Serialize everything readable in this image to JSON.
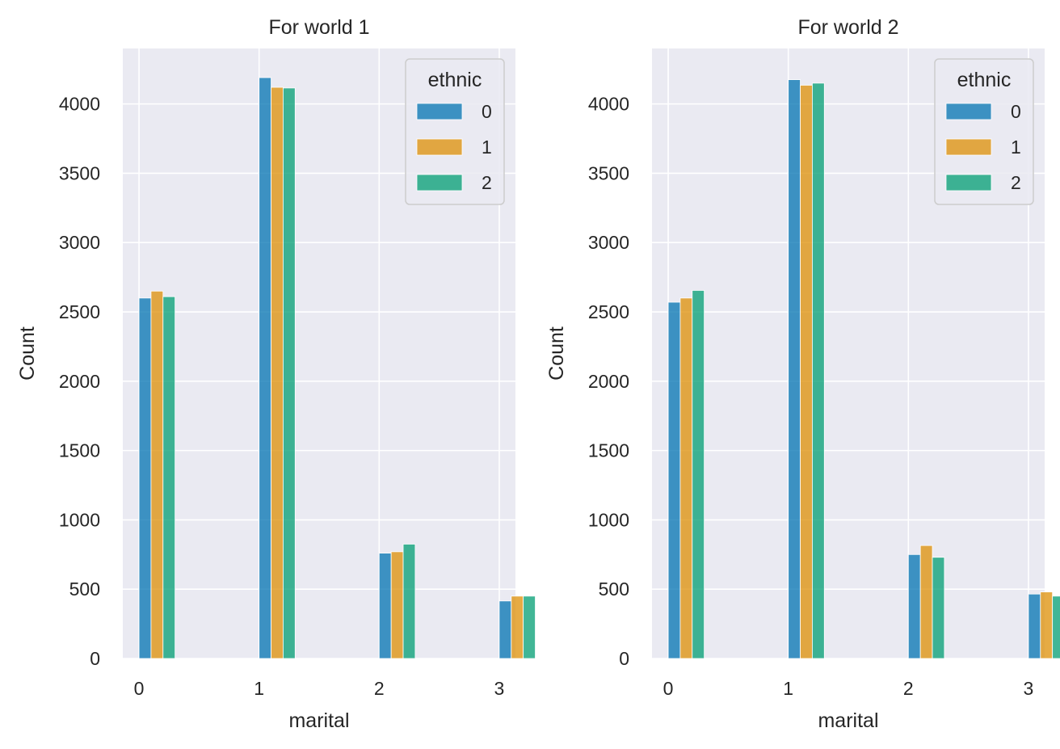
{
  "palette": {
    "background": "#eaeaf2",
    "grid": "#ffffff",
    "text": "#262626",
    "series": [
      "#0173b2",
      "#de8f05",
      "#029e73"
    ]
  },
  "chart_data": [
    {
      "type": "bar",
      "title": "For world 1",
      "xlabel": "marital",
      "ylabel": "Count",
      "categories": [
        "0",
        "1",
        "2",
        "3"
      ],
      "xticks": [
        "0",
        "1",
        "2",
        "3"
      ],
      "yticks": [
        "0",
        "500",
        "1000",
        "1500",
        "2000",
        "2500",
        "3000",
        "3500",
        "4000"
      ],
      "ylim": [
        0,
        4400
      ],
      "legend": {
        "title": "ethnic",
        "placement": "top-right"
      },
      "grid": true,
      "series": [
        {
          "name": "0",
          "values": [
            2600,
            4190,
            760,
            415
          ]
        },
        {
          "name": "1",
          "values": [
            2650,
            4120,
            770,
            450
          ]
        },
        {
          "name": "2",
          "values": [
            2610,
            4115,
            825,
            450
          ]
        }
      ]
    },
    {
      "type": "bar",
      "title": "For world 2",
      "xlabel": "marital",
      "ylabel": "Count",
      "categories": [
        "0",
        "1",
        "2",
        "3"
      ],
      "xticks": [
        "0",
        "1",
        "2",
        "3"
      ],
      "yticks": [
        "0",
        "500",
        "1000",
        "1500",
        "2000",
        "2500",
        "3000",
        "3500",
        "4000"
      ],
      "ylim": [
        0,
        4400
      ],
      "legend": {
        "title": "ethnic",
        "placement": "top-right"
      },
      "grid": true,
      "series": [
        {
          "name": "0",
          "values": [
            2570,
            4175,
            750,
            465
          ]
        },
        {
          "name": "1",
          "values": [
            2600,
            4135,
            815,
            480
          ]
        },
        {
          "name": "2",
          "values": [
            2655,
            4150,
            730,
            450
          ]
        }
      ]
    }
  ]
}
